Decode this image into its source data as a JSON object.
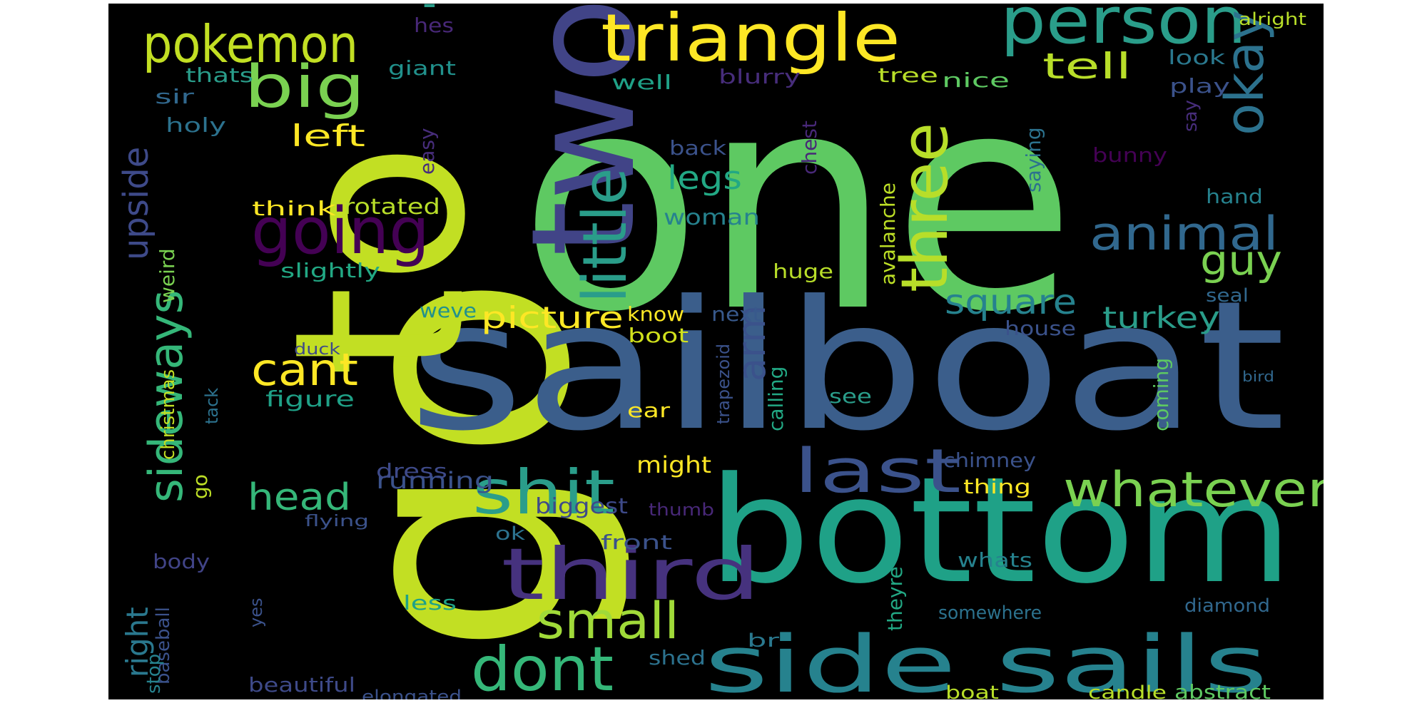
{
  "words": [
    {
      "t": "one",
      "c": "#5ec962"
    },
    {
      "t": "go",
      "c": "#c2df23"
    },
    {
      "t": "sailboat",
      "c": "#3b5e8b"
    },
    {
      "t": "bottom",
      "c": "#1fa187"
    },
    {
      "t": "to",
      "c": "#c2df23"
    },
    {
      "t": "two",
      "c": "#414487"
    },
    {
      "t": "side sails",
      "c": "#26828e"
    },
    {
      "t": "triangle",
      "c": "#fde725"
    },
    {
      "t": "person",
      "c": "#2a9d8a"
    },
    {
      "t": "pokemon",
      "c": "#c2df23"
    },
    {
      "t": "third",
      "c": "#46327e"
    },
    {
      "t": "going",
      "c": "#440154"
    },
    {
      "t": "big",
      "c": "#7ad151"
    },
    {
      "t": "little",
      "c": "#2a9d8a"
    },
    {
      "t": "three",
      "c": "#b8de29"
    },
    {
      "t": "okay",
      "c": "#2c728e"
    },
    {
      "t": "animal",
      "c": "#31688e"
    },
    {
      "t": "sideways",
      "c": "#35b779"
    },
    {
      "t": "shit",
      "c": "#2a9d8a"
    },
    {
      "t": "last",
      "c": "#3b528b"
    },
    {
      "t": "whatever",
      "c": "#7ad151"
    },
    {
      "t": "dont",
      "c": "#35b779"
    },
    {
      "t": "small",
      "c": "#a0da39"
    },
    {
      "t": "cant",
      "c": "#fde725"
    },
    {
      "t": "head",
      "c": "#35b779"
    },
    {
      "t": "square",
      "c": "#26828e"
    },
    {
      "t": "guy",
      "c": "#7ad151"
    },
    {
      "t": "picture",
      "c": "#fde725"
    },
    {
      "t": "tell",
      "c": "#b8de29"
    },
    {
      "t": "upside",
      "c": "#3e4a89"
    },
    {
      "t": "arm",
      "c": "#3b528b"
    },
    {
      "t": "right",
      "c": "#2a788e"
    },
    {
      "t": "legs",
      "c": "#22a884"
    },
    {
      "t": "left",
      "c": "#fde725"
    },
    {
      "t": "turkey",
      "c": "#2a9d8a"
    },
    {
      "t": "-",
      "c": "#2a9d8a"
    },
    {
      "t": "running",
      "c": "#3b528b"
    },
    {
      "t": "might",
      "c": "#fde725"
    },
    {
      "t": "biggest",
      "c": "#3e4a89"
    },
    {
      "t": "woman",
      "c": "#26828e"
    },
    {
      "t": "figure",
      "c": "#1fa187"
    },
    {
      "t": "rotated",
      "c": "#b8de29"
    },
    {
      "t": "think",
      "c": "#fde725"
    },
    {
      "t": "slightly",
      "c": "#22a884"
    },
    {
      "t": "holy",
      "c": "#2c728e"
    },
    {
      "t": "sir",
      "c": "#31688e"
    },
    {
      "t": "thats",
      "c": "#2a9d8a"
    },
    {
      "t": "giant",
      "c": "#21918c"
    },
    {
      "t": "hes",
      "c": "#482878"
    },
    {
      "t": "well",
      "c": "#1fa187"
    },
    {
      "t": "blurry",
      "c": "#472d7b"
    },
    {
      "t": "tree",
      "c": "#b8de29"
    },
    {
      "t": "nice",
      "c": "#5ec962"
    },
    {
      "t": "look",
      "c": "#2a788e"
    },
    {
      "t": "play",
      "c": "#3b528b"
    },
    {
      "t": "alright",
      "c": "#b8de29"
    },
    {
      "t": "back",
      "c": "#3b528b"
    },
    {
      "t": "bunny",
      "c": "#440154"
    },
    {
      "t": "chest",
      "c": "#482878"
    },
    {
      "t": "saying",
      "c": "#2c728e"
    },
    {
      "t": "say",
      "c": "#472d7b"
    },
    {
      "t": "hand",
      "c": "#26828e"
    },
    {
      "t": "easy",
      "c": "#472d7b"
    },
    {
      "t": "avalanche",
      "c": "#bddf26"
    },
    {
      "t": "huge",
      "c": "#b8de29"
    },
    {
      "t": "know",
      "c": "#fde725"
    },
    {
      "t": "next",
      "c": "#38598c"
    },
    {
      "t": "boot",
      "c": "#d0e11c"
    },
    {
      "t": "weve",
      "c": "#21918c"
    },
    {
      "t": "seal",
      "c": "#31688e"
    },
    {
      "t": "house",
      "c": "#3b528b"
    },
    {
      "t": "weird",
      "c": "#7ad151"
    },
    {
      "t": "christmas",
      "c": "#c2df23"
    },
    {
      "t": "duck",
      "c": "#3e4a89"
    },
    {
      "t": "trapezoid",
      "c": "#3b528b"
    },
    {
      "t": "calling",
      "c": "#22a884"
    },
    {
      "t": "see",
      "c": "#2a9d8a"
    },
    {
      "t": "ear",
      "c": "#fde725"
    },
    {
      "t": "coming",
      "c": "#5ec962"
    },
    {
      "t": "bird",
      "c": "#31688e"
    },
    {
      "t": "tack",
      "c": "#2c728e"
    },
    {
      "t": "dress",
      "c": "#3e4a89"
    },
    {
      "t": "chimney",
      "c": "#3b528b"
    },
    {
      "t": "go",
      "c": "#bddf26"
    },
    {
      "t": "thing",
      "c": "#fde725"
    },
    {
      "t": "flying",
      "c": "#3b528b"
    },
    {
      "t": "thumb",
      "c": "#482878"
    },
    {
      "t": "ok",
      "c": "#2c728e"
    },
    {
      "t": "front",
      "c": "#3b528b"
    },
    {
      "t": "whats",
      "c": "#26828e"
    },
    {
      "t": "theyre",
      "c": "#22a884"
    },
    {
      "t": "body",
      "c": "#414487"
    },
    {
      "t": "yes",
      "c": "#3b528b"
    },
    {
      "t": "less",
      "c": "#1fa187"
    },
    {
      "t": "baseball",
      "c": "#3b528b"
    },
    {
      "t": "stop",
      "c": "#26828e"
    },
    {
      "t": "somewhere",
      "c": "#2c728e"
    },
    {
      "t": "diamond",
      "c": "#31688e"
    },
    {
      "t": "shed",
      "c": "#2c728e"
    },
    {
      "t": "br",
      "c": "#2a788e"
    },
    {
      "t": "beautiful",
      "c": "#3e4a89"
    },
    {
      "t": "elongated",
      "c": "#3b528b"
    },
    {
      "t": "boat",
      "c": "#b8de29"
    },
    {
      "t": "candle",
      "c": "#b8de29"
    },
    {
      "t": "abstract",
      "c": "#5ec962"
    }
  ]
}
